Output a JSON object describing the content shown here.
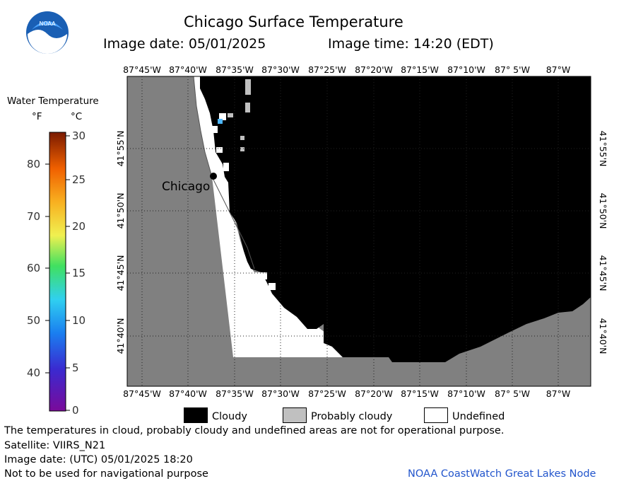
{
  "header": {
    "title": "Chicago Surface Temperature",
    "image_date": "Image date: 05/01/2025",
    "image_time": "Image time: 14:20 (EDT)",
    "logo_text": "NOAA"
  },
  "legend": {
    "title": "Water Temperature",
    "unit_f": "°F",
    "unit_c": "°C",
    "f_ticks": [
      "80",
      "70",
      "60",
      "50",
      "40"
    ],
    "c_ticks": [
      "30",
      "25",
      "20",
      "15",
      "10",
      "5",
      "0"
    ]
  },
  "map": {
    "top_lon_labels": [
      "87°45'W",
      "87°40'W",
      "87°35'W",
      "87°30'W",
      "87°25'W",
      "87°20'W",
      "87°15'W",
      "87°10'W",
      "87° 5'W",
      "87°W"
    ],
    "bottom_lon_labels": [
      "87°45'W",
      "87°40'W",
      "87°35'W",
      "87°30'W",
      "87°25'W",
      "87°20'W",
      "87°15'W",
      "87°10'W",
      "87° 5'W",
      "87°W"
    ],
    "lat_labels": [
      "41°55'N",
      "41°50'N",
      "41°45'N",
      "41°40'N"
    ],
    "city_label": "Chicago",
    "colors": {
      "land": "#808080",
      "cloud": "#000000",
      "probably_cloudy": "#c0c0c0",
      "undefined": "#ffffff",
      "water": "#4db8ff"
    }
  },
  "mask_legend": {
    "cloudy": "Cloudy",
    "probably_cloudy": "Probably cloudy",
    "undefined": "Undefined"
  },
  "footer": {
    "note": "The temperatures in cloud, probably cloudy and undefined areas are not for operational purpose.",
    "satellite": "Satellite: VIIRS_N21",
    "utc_date": "Image date: (UTC) 05/01/2025  18:20",
    "nav_warning": "Not to be used for navigational purpose",
    "credit": "NOAA CoastWatch Great Lakes Node"
  }
}
